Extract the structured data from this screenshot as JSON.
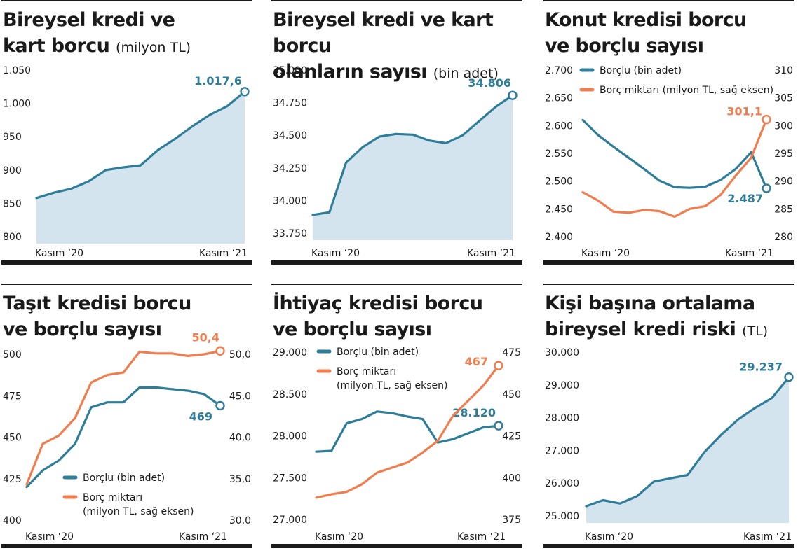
{
  "colors": {
    "blue": "#2e7d99",
    "orange": "#f07d4e",
    "fill": "#d4e4ef",
    "text": "#1a1a1a"
  },
  "panels": [
    {
      "title_line1": "Bireysel kredi ve",
      "title_line2": "kart borcu",
      "unit": "(milyon TL)",
      "chart_data": {
        "type": "area",
        "x_start_label": "Kasım ‘20",
        "x_end_label": "Kasım ‘21",
        "ylim": [
          800,
          1050
        ],
        "yticks": [
          "1.050",
          "1.000",
          "950",
          "900",
          "850",
          "800"
        ],
        "series": [
          {
            "values": [
              858,
              866,
              872,
              883,
              900,
              904,
              907,
              930,
              947,
              966,
              983,
              996,
              1017.6
            ]
          }
        ],
        "end_label": "1.017,6"
      }
    },
    {
      "title_line1": "Bireysel kredi ve kart borcu",
      "title_line2": "olanların sayısı",
      "unit": "(bin adet)",
      "chart_data": {
        "type": "area",
        "x_start_label": "Kasım ‘20",
        "x_end_label": "Kasım ‘21",
        "ylim": [
          33750,
          35000
        ],
        "yticks": [
          "35.000",
          "34.750",
          "34.500",
          "34.250",
          "34.000",
          "33.750"
        ],
        "series": [
          {
            "values": [
              33890,
              33910,
              34290,
              34410,
              34490,
              34510,
              34505,
              34460,
              34440,
              34500,
              34610,
              34720,
              34806
            ]
          }
        ],
        "end_label": "34.806"
      }
    },
    {
      "title_line1": "Konut kredisi borcu",
      "title_line2": "ve borçlu sayısı",
      "unit": "",
      "chart_data": {
        "type": "line",
        "x_start_label": "Kasım ‘20",
        "x_end_label": "Kasım ‘21",
        "ylim": [
          2400,
          2700
        ],
        "yticks": [
          "2.700",
          "2.650",
          "2.600",
          "2.550",
          "2.500",
          "2.450",
          "2.400"
        ],
        "y2lim": [
          280,
          310
        ],
        "y2ticks": [
          "310",
          "305",
          "300",
          "295",
          "290",
          "285",
          "280"
        ],
        "series": [
          {
            "name": "Borçlu (bin adet)",
            "axis": "left",
            "values": [
              2610,
              2583,
              2562,
              2542,
              2522,
              2501,
              2489,
              2488,
              2490,
              2502,
              2522,
              2552,
              2487
            ],
            "end_label": "2.487"
          },
          {
            "name": "Borç miktarı (milyon TL, sağ eksen)",
            "axis": "right",
            "values": [
              288,
              286.5,
              284.5,
              284.3,
              284.8,
              284.6,
              283.6,
              285,
              285.5,
              287.5,
              291,
              294.2,
              301.1
            ],
            "end_label": "301,1"
          }
        ]
      }
    },
    {
      "title_line1": "Taşıt kredisi borcu",
      "title_line2": "ve borçlu sayısı",
      "unit": "",
      "chart_data": {
        "type": "line",
        "x_start_label": "Kasım ‘20",
        "x_end_label": "Kasım ‘21",
        "ylim": [
          400,
          500
        ],
        "yticks": [
          "500",
          "475",
          "450",
          "425",
          "400"
        ],
        "y2lim": [
          30,
          50
        ],
        "y2ticks": [
          "50,0",
          "45,0",
          "40,0",
          "35,0",
          "30,0"
        ],
        "series": [
          {
            "name": "Borçlu (bin adet)",
            "axis": "left",
            "values": [
              420,
              430,
              436,
              446,
              468,
              471,
              471,
              480,
              480,
              479,
              478,
              476,
              469
            ],
            "end_label": "469"
          },
          {
            "name": "Borç miktarı",
            "name_line2": "(milyon TL, sağ eksen)",
            "axis": "right",
            "values": [
              34.3,
              39.2,
              40.2,
              42.3,
              46.6,
              47.5,
              47.8,
              50.3,
              50.1,
              50.1,
              49.8,
              50.0,
              50.4
            ],
            "end_label": "50,4"
          }
        ]
      }
    },
    {
      "title_line1": "İhtiyaç kredisi borcu",
      "title_line2": "ve borçlu sayısı",
      "unit": "",
      "chart_data": {
        "type": "line",
        "x_start_label": "Kasım ‘20",
        "x_end_label": "Kasım ‘21",
        "ylim": [
          27000,
          29000
        ],
        "yticks": [
          "29.000",
          "28.500",
          "28.000",
          "27.500",
          "27.000"
        ],
        "y2lim": [
          375,
          475
        ],
        "y2ticks": [
          "475",
          "450",
          "425",
          "400",
          "375"
        ],
        "series": [
          {
            "name": "Borçlu (bin adet)",
            "axis": "left",
            "values": [
              27810,
              27820,
              28150,
              28200,
              28290,
              28270,
              28230,
              28200,
              27920,
              27960,
              28030,
              28100,
              28120
            ],
            "end_label": "28.120"
          },
          {
            "name": "Borç miktarı",
            "name_line2": "(milyon TL, sağ eksen)",
            "axis": "right",
            "values": [
              388,
              390,
              391.5,
              396,
              403,
              406,
              409,
              415,
              422,
              437,
              446,
              455,
              467
            ],
            "end_label": "467"
          }
        ]
      }
    },
    {
      "title_line1": "Kişi başına ortalama",
      "title_line2": "bireysel kredi riski",
      "unit": "(TL)",
      "chart_data": {
        "type": "area",
        "x_start_label": "Kasım ‘20",
        "x_end_label": "Kasım ‘21",
        "ylim": [
          25000,
          30000
        ],
        "yticks": [
          "30.000",
          "29.000",
          "28.000",
          "27.000",
          "26.000",
          "25.000"
        ],
        "series": [
          {
            "values": [
              25300,
              25480,
              25380,
              25600,
              26050,
              26150,
              26250,
              26950,
              27480,
              27950,
              28300,
              28600,
              29237
            ]
          }
        ],
        "end_label": "29.237"
      }
    }
  ]
}
